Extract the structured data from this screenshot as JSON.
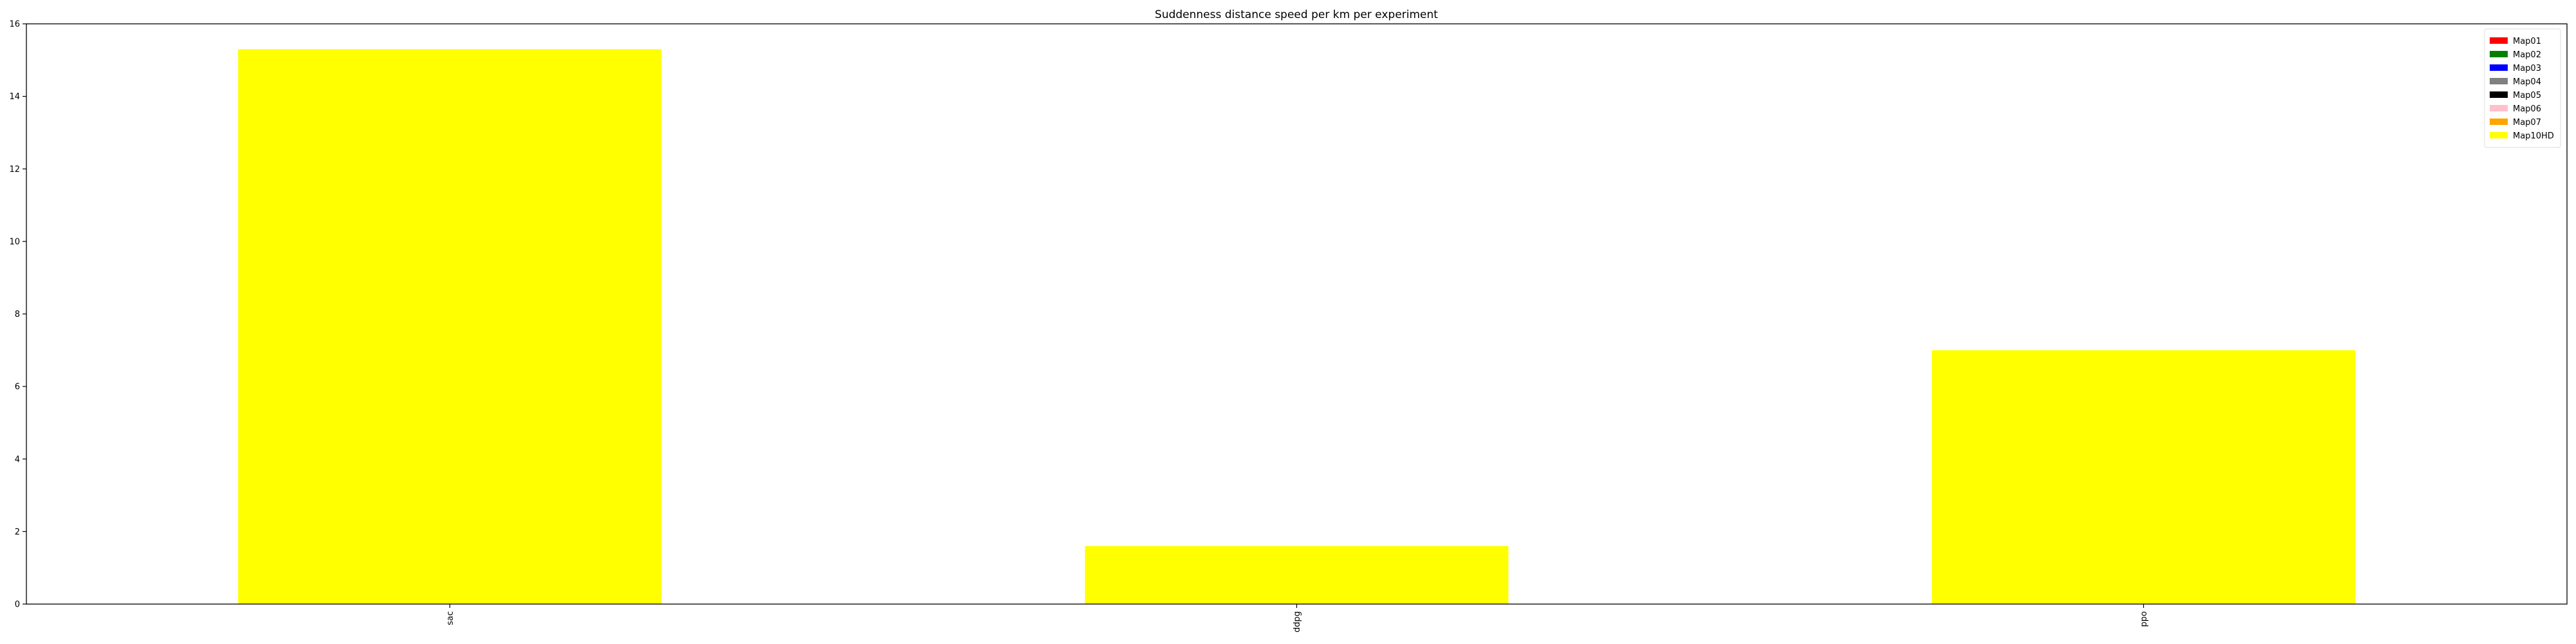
{
  "chart_data": {
    "type": "bar",
    "title": "Suddenness distance speed per km per experiment",
    "xlabel": "",
    "ylabel": "",
    "categories": [
      "sac",
      "ddpg",
      "ppo"
    ],
    "series": [
      {
        "name": "Map01",
        "color": "#ff0000",
        "values": [
          0,
          0,
          0
        ]
      },
      {
        "name": "Map02",
        "color": "#008000",
        "values": [
          0,
          0,
          0
        ]
      },
      {
        "name": "Map03",
        "color": "#0000ff",
        "values": [
          0,
          0,
          0
        ]
      },
      {
        "name": "Map04",
        "color": "#808080",
        "values": [
          0,
          0,
          0
        ]
      },
      {
        "name": "Map05",
        "color": "#000000",
        "values": [
          0,
          0,
          0
        ]
      },
      {
        "name": "Map06",
        "color": "#ffc0cb",
        "values": [
          0,
          0,
          0
        ]
      },
      {
        "name": "Map07",
        "color": "#ffa500",
        "values": [
          0,
          0,
          0
        ]
      },
      {
        "name": "Map10HD",
        "color": "#ffff00",
        "values": [
          15.3,
          1.6,
          7.0
        ]
      }
    ],
    "stacked": true,
    "ylim": [
      0,
      16
    ],
    "yticks": [
      0,
      2,
      4,
      6,
      8,
      10,
      12,
      14,
      16
    ],
    "grid": false,
    "legend_position": "top-right"
  }
}
